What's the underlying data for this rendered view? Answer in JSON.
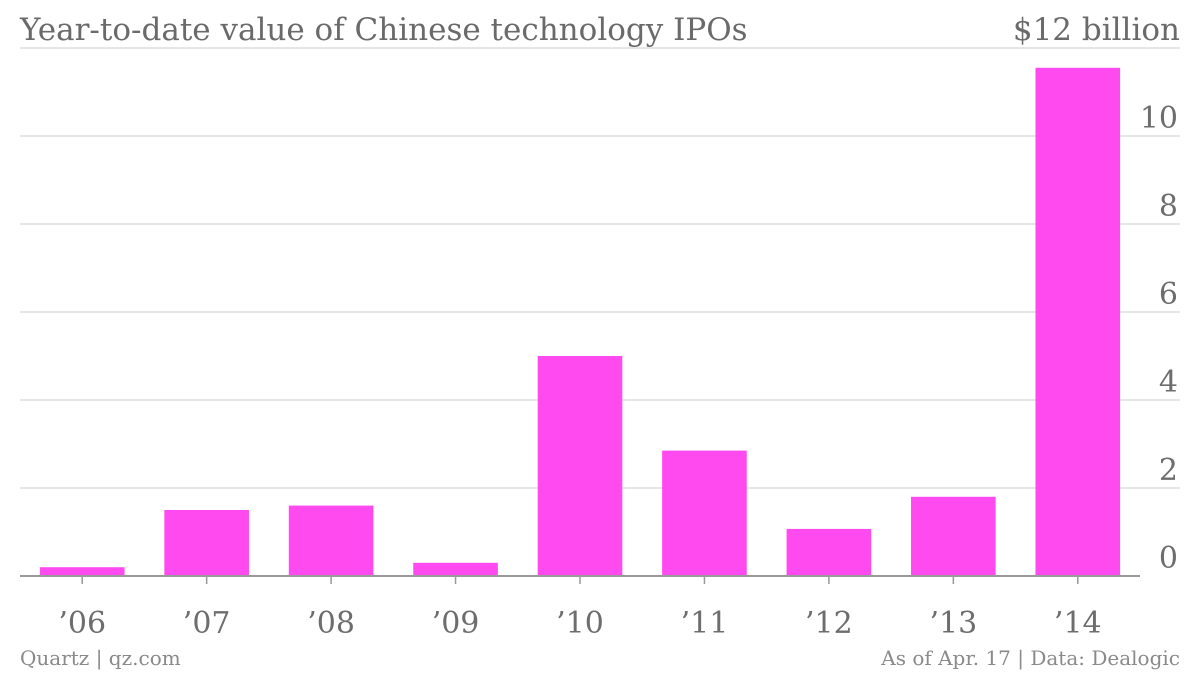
{
  "header": {
    "title": "Year-to-date value of Chinese technology IPOs",
    "unit_label": "$12 billion"
  },
  "footer": {
    "source_left": "Quartz | qz.com",
    "source_right": "As of Apr. 17 | Data: Dealogic"
  },
  "colors": {
    "bar": "#ff4af0",
    "grid": "#dedede",
    "axis": "#9a9a9a",
    "text": "#6d6d6d"
  },
  "chart_data": {
    "type": "bar",
    "title": "Year-to-date value of Chinese technology IPOs",
    "xlabel": "",
    "ylabel": "",
    "unit": "$12 billion",
    "categories": [
      "’06",
      "’07",
      "’08",
      "’09",
      "’10",
      "’11",
      "’12",
      "’13",
      "’14"
    ],
    "values": [
      0.2,
      1.5,
      1.6,
      0.3,
      5.0,
      2.85,
      1.07,
      1.8,
      11.55
    ],
    "yticks": [
      0,
      2,
      4,
      6,
      8,
      10
    ],
    "ylim": [
      0,
      12
    ],
    "grid": true,
    "legend": "none"
  }
}
